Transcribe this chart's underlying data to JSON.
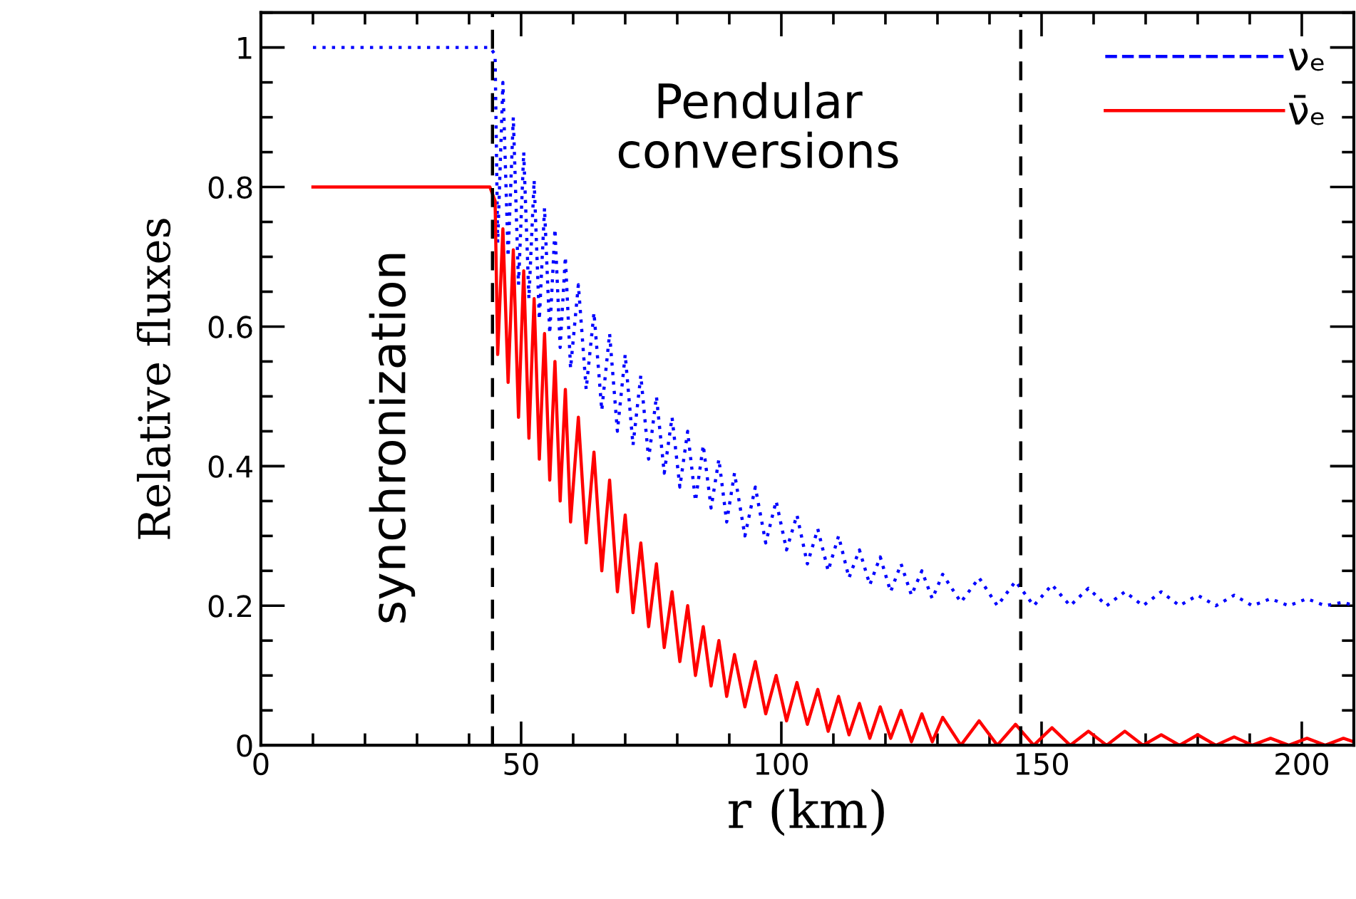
{
  "chart_data": {
    "type": "line",
    "xlabel": "r (km)",
    "ylabel": "Relative fluxes",
    "xlim": [
      0,
      210
    ],
    "ylim": [
      0,
      1.05
    ],
    "xticks": [
      0,
      50,
      100,
      150,
      200
    ],
    "yticks": [
      0,
      0.2,
      0.4,
      0.6,
      0.8,
      1
    ],
    "grid": false,
    "legend": "top right",
    "annotations": [
      "Pendular\nconversions",
      "synchronization"
    ],
    "ref_lines": [
      {
        "axis": "x",
        "value": 44.5,
        "color": "#000000",
        "line_style": "dashed"
      },
      {
        "axis": "x",
        "value": 146,
        "color": "#000000",
        "line_style": "dashed"
      }
    ],
    "series": [
      {
        "name": "νₑ",
        "color": "#0000ff",
        "line_style": "dotted",
        "x": [
          10,
          44,
          45,
          45.5,
          46.5,
          47.5,
          48.5,
          49.5,
          50.5,
          51.5,
          52.5,
          53.5,
          54.5,
          55.5,
          56.5,
          57.5,
          58.5,
          59.5,
          61,
          62.5,
          64,
          65.5,
          67,
          68.5,
          70,
          71.5,
          73,
          74.5,
          76,
          77.5,
          79,
          80.5,
          82,
          83.5,
          85,
          86.5,
          88,
          89.5,
          91,
          93,
          95,
          97,
          99,
          101,
          103,
          105,
          107,
          109,
          111,
          113,
          115,
          117,
          119,
          121,
          123,
          125,
          127,
          129,
          131,
          134.5,
          138,
          141.5,
          145,
          148.5,
          152,
          155.5,
          159,
          162.5,
          166,
          169.5,
          173,
          176.5,
          180,
          183.5,
          187,
          190.5,
          194,
          197.5,
          201,
          204.5,
          208,
          210
        ],
        "values": [
          1,
          1,
          0.99,
          0.72,
          0.95,
          0.7,
          0.9,
          0.66,
          0.85,
          0.64,
          0.81,
          0.61,
          0.77,
          0.59,
          0.74,
          0.57,
          0.7,
          0.54,
          0.66,
          0.51,
          0.62,
          0.48,
          0.59,
          0.45,
          0.56,
          0.43,
          0.53,
          0.41,
          0.5,
          0.39,
          0.47,
          0.37,
          0.45,
          0.35,
          0.43,
          0.34,
          0.41,
          0.32,
          0.39,
          0.3,
          0.37,
          0.29,
          0.35,
          0.28,
          0.33,
          0.26,
          0.31,
          0.25,
          0.3,
          0.24,
          0.28,
          0.23,
          0.27,
          0.22,
          0.26,
          0.215,
          0.25,
          0.21,
          0.245,
          0.205,
          0.24,
          0.2,
          0.235,
          0.2,
          0.23,
          0.2,
          0.225,
          0.2,
          0.22,
          0.2,
          0.22,
          0.2,
          0.215,
          0.2,
          0.215,
          0.2,
          0.21,
          0.2,
          0.21,
          0.2,
          0.205,
          0.2
        ]
      },
      {
        "name": "ν̄ₑ",
        "color": "#ff0000",
        "line_style": "solid",
        "x": [
          10,
          44,
          45,
          45.5,
          46.5,
          47.5,
          48.5,
          49.5,
          50.5,
          51.5,
          52.5,
          53.5,
          54.5,
          55.5,
          56.5,
          57.5,
          58.5,
          59.5,
          61,
          62.5,
          64,
          65.5,
          67,
          68.5,
          70,
          71.5,
          73,
          74.5,
          76,
          77.5,
          79,
          80.5,
          82,
          83.5,
          85,
          86.5,
          88,
          89.5,
          91,
          93,
          95,
          97,
          99,
          101,
          103,
          105,
          107,
          109,
          111,
          113,
          115,
          117,
          119,
          121,
          123,
          125,
          127,
          129,
          131,
          134.5,
          138,
          141.5,
          145,
          148.5,
          152,
          155.5,
          159,
          162.5,
          166,
          169.5,
          173,
          176.5,
          180,
          183.5,
          187,
          190.5,
          194,
          197.5,
          201,
          204.5,
          208,
          210
        ],
        "values": [
          0.8,
          0.8,
          0.78,
          0.56,
          0.74,
          0.52,
          0.71,
          0.47,
          0.68,
          0.44,
          0.64,
          0.41,
          0.59,
          0.38,
          0.55,
          0.35,
          0.51,
          0.32,
          0.47,
          0.29,
          0.42,
          0.25,
          0.38,
          0.22,
          0.33,
          0.19,
          0.29,
          0.17,
          0.26,
          0.14,
          0.22,
          0.12,
          0.2,
          0.1,
          0.17,
          0.085,
          0.15,
          0.07,
          0.13,
          0.055,
          0.12,
          0.045,
          0.1,
          0.035,
          0.09,
          0.03,
          0.08,
          0.02,
          0.07,
          0.015,
          0.06,
          0.01,
          0.055,
          0.01,
          0.05,
          0.005,
          0.045,
          0.005,
          0.04,
          0,
          0.035,
          0,
          0.03,
          0,
          0.025,
          0,
          0.02,
          0,
          0.02,
          0,
          0.015,
          0,
          0.015,
          0,
          0.012,
          0,
          0.01,
          0,
          0.01,
          0,
          0.01,
          0.005
        ]
      }
    ]
  }
}
